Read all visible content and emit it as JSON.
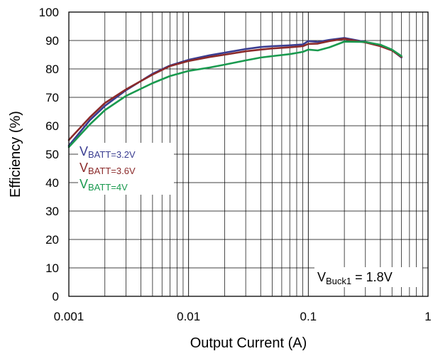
{
  "chart_data": {
    "type": "line",
    "title": "",
    "xlabel": "Output Current (A)",
    "ylabel": "Efficiency (%)",
    "xscale": "log",
    "xlim": [
      0.001,
      1
    ],
    "ylim": [
      0,
      100
    ],
    "grid": true,
    "x_ticks": [
      "0.001",
      "0.01",
      "0.1",
      "1"
    ],
    "y_ticks": [
      "0",
      "10",
      "20",
      "30",
      "40",
      "50",
      "60",
      "70",
      "80",
      "90",
      "100"
    ],
    "legend_placement": "left",
    "annotation": {
      "prefix": "V",
      "sub": "Buck1",
      "suffix": " = 1.8V"
    },
    "series": [
      {
        "name": "VBATT=3.2V",
        "label_main": "V",
        "label_sub": "BATT=3.2V",
        "color": "#3a3d91",
        "x": [
          0.001,
          0.0015,
          0.002,
          0.003,
          0.005,
          0.007,
          0.01,
          0.015,
          0.02,
          0.03,
          0.04,
          0.05,
          0.07,
          0.09,
          0.1,
          0.12,
          0.15,
          0.2,
          0.3,
          0.4,
          0.5,
          0.6
        ],
        "values": [
          53,
          62,
          67,
          72.5,
          78.3,
          81.2,
          83.2,
          84.8,
          85.7,
          87,
          87.7,
          88,
          88.3,
          88.6,
          89.8,
          89.5,
          90.2,
          90.9,
          89.5,
          88.2,
          86.6,
          84
        ]
      },
      {
        "name": "VBATT=3.6V",
        "label_main": "V",
        "label_sub": "BATT=3.6V",
        "color": "#8b2a2a",
        "x": [
          0.001,
          0.0015,
          0.002,
          0.003,
          0.005,
          0.007,
          0.01,
          0.015,
          0.02,
          0.03,
          0.04,
          0.05,
          0.07,
          0.09,
          0.1,
          0.12,
          0.15,
          0.2,
          0.3,
          0.4,
          0.5,
          0.6
        ],
        "values": [
          55,
          63,
          68,
          72.8,
          78,
          81,
          82.8,
          84.2,
          85,
          86.2,
          86.8,
          87.2,
          87.6,
          88,
          88.8,
          88.9,
          89.8,
          90.6,
          89.3,
          88,
          86.5,
          84.2
        ]
      },
      {
        "name": "VBATT=4V",
        "label_main": "V",
        "label_sub": "BATT=4V",
        "color": "#1a9a4f",
        "x": [
          0.001,
          0.0015,
          0.002,
          0.003,
          0.005,
          0.007,
          0.01,
          0.015,
          0.02,
          0.03,
          0.04,
          0.05,
          0.07,
          0.09,
          0.1,
          0.12,
          0.15,
          0.2,
          0.3,
          0.4,
          0.5,
          0.6
        ],
        "values": [
          52.5,
          60.5,
          65.5,
          70.5,
          75,
          77.5,
          79.3,
          80.5,
          81.5,
          83,
          84,
          84.5,
          85.2,
          86,
          86.8,
          86.5,
          87.6,
          89.6,
          89.5,
          88.5,
          86.8,
          84.5
        ]
      }
    ]
  }
}
